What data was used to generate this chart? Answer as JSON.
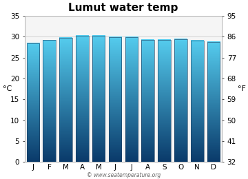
{
  "title": "Lumut water temp",
  "months": [
    "J",
    "F",
    "M",
    "A",
    "M",
    "J",
    "J",
    "A",
    "S",
    "O",
    "N",
    "D"
  ],
  "temps_c": [
    28.5,
    29.2,
    29.7,
    30.3,
    30.3,
    29.9,
    29.9,
    29.3,
    29.3,
    29.4,
    29.1,
    28.8
  ],
  "ylabel_left": "°C",
  "ylabel_right": "°F",
  "ylim_c": [
    0,
    35
  ],
  "yticks_c": [
    0,
    5,
    10,
    15,
    20,
    25,
    30,
    35
  ],
  "yticks_f": [
    32,
    41,
    50,
    59,
    68,
    77,
    86,
    95
  ],
  "bar_color_top": "#55ccee",
  "bar_color_bottom": "#0a3a6a",
  "background_color": "#ffffff",
  "plot_bg_color": "#f5f5f5",
  "watermark": "© www.seatemperature.org",
  "title_fontsize": 11,
  "tick_fontsize": 7.5,
  "label_fontsize": 8,
  "bar_width": 0.78
}
